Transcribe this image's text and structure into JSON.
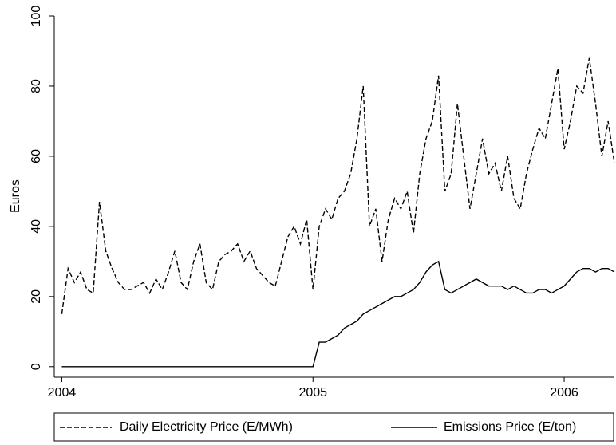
{
  "chart_data": {
    "type": "line",
    "y_label": "Euros",
    "x": [
      2004,
      2004.025,
      2004.05,
      2004.075,
      2004.1,
      2004.125,
      2004.15,
      2004.175,
      2004.2,
      2004.225,
      2004.25,
      2004.275,
      2004.3,
      2004.325,
      2004.35,
      2004.375,
      2004.4,
      2004.425,
      2004.45,
      2004.475,
      2004.5,
      2004.525,
      2004.55,
      2004.575,
      2004.6,
      2004.625,
      2004.65,
      2004.675,
      2004.7,
      2004.725,
      2004.75,
      2004.775,
      2004.8,
      2004.825,
      2004.85,
      2004.875,
      2004.9,
      2004.925,
      2004.95,
      2004.975,
      2005,
      2005.025,
      2005.05,
      2005.075,
      2005.1,
      2005.125,
      2005.15,
      2005.175,
      2005.2,
      2005.225,
      2005.25,
      2005.275,
      2005.3,
      2005.325,
      2005.35,
      2005.375,
      2005.4,
      2005.425,
      2005.45,
      2005.475,
      2005.5,
      2005.525,
      2005.55,
      2005.575,
      2005.6,
      2005.625,
      2005.65,
      2005.675,
      2005.7,
      2005.725,
      2005.75,
      2005.775,
      2005.8,
      2005.825,
      2005.85,
      2005.875,
      2005.9,
      2005.925,
      2005.95,
      2005.975,
      2006,
      2006.025,
      2006.05,
      2006.075,
      2006.1,
      2006.125,
      2006.15,
      2006.175,
      2006.2
    ],
    "series": [
      {
        "name": "Daily Electricity Price (E/MWh)",
        "color": "#000000",
        "dash": true,
        "values": [
          15,
          28,
          24,
          27,
          22,
          21,
          47,
          33,
          28,
          24,
          22,
          22,
          23,
          24,
          21,
          25,
          22,
          27,
          33,
          24,
          22,
          30,
          35,
          24,
          22,
          30,
          32,
          33,
          35,
          30,
          33,
          28,
          26,
          24,
          23,
          30,
          37,
          40,
          35,
          42,
          22,
          40,
          45,
          42,
          48,
          50,
          55,
          65,
          80,
          40,
          45,
          30,
          42,
          48,
          45,
          50,
          38,
          55,
          65,
          70,
          83,
          50,
          55,
          75,
          60,
          45,
          55,
          65,
          55,
          58,
          50,
          60,
          48,
          45,
          55,
          62,
          68,
          65,
          75,
          85,
          62,
          70,
          80,
          78,
          88,
          75,
          60,
          70,
          58
        ]
      },
      {
        "name": "Emissions Price (E/ton)",
        "color": "#000000",
        "dash": false,
        "values": [
          0,
          0,
          0,
          0,
          0,
          0,
          0,
          0,
          0,
          0,
          0,
          0,
          0,
          0,
          0,
          0,
          0,
          0,
          0,
          0,
          0,
          0,
          0,
          0,
          0,
          0,
          0,
          0,
          0,
          0,
          0,
          0,
          0,
          0,
          0,
          0,
          0,
          0,
          0,
          0,
          0,
          7,
          7,
          8,
          9,
          11,
          12,
          13,
          15,
          16,
          17,
          18,
          19,
          20,
          20,
          21,
          22,
          24,
          27,
          29,
          30,
          22,
          21,
          22,
          23,
          24,
          25,
          24,
          23,
          23,
          23,
          22,
          23,
          22,
          21,
          21,
          22,
          22,
          21,
          22,
          23,
          25,
          27,
          28,
          28,
          27,
          28,
          28,
          27
        ]
      }
    ],
    "xlim": [
      2003.97,
      2006.2
    ],
    "xticks": [
      2004,
      2005,
      2006
    ],
    "ylim": [
      -3,
      100
    ],
    "yticks": [
      0,
      20,
      40,
      60,
      80,
      100
    ]
  }
}
